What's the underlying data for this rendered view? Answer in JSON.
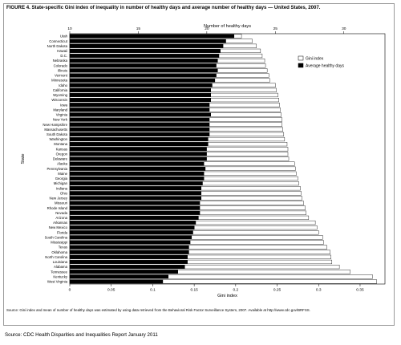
{
  "figure": {
    "title": "FIGURE 4. State-specific Gini index of inequality in number of healthy days and average number of healthy days — United States, 2007.",
    "footnote": "Source: Gini index and mean of number of healthy days was estimated by using data retrieved from the Behavioral Risk Factor Surveillance System, 2007. Available at http://www.cdc.gov/BRFSS."
  },
  "page": {
    "source": "Source:  CDC Health Disparities and Inequalities Report January 2011"
  },
  "chart_data": {
    "type": "bar",
    "orientation": "horizontal",
    "ylabel": "State",
    "xlabel_bottom": "Gini index",
    "xlabel_top": "Number of healthy days",
    "x_bottom_lim": [
      0,
      0.38
    ],
    "x_bottom_ticks": [
      "0",
      "0.05",
      "0.1",
      "0.15",
      "0.2",
      "0.25",
      "0.3",
      "0.35"
    ],
    "x_top_lim": [
      10,
      33
    ],
    "x_top_ticks": [
      "10",
      "15",
      "20",
      "25",
      "30"
    ],
    "legend_position": "right",
    "grid": false,
    "categories": [
      "Utah",
      "Connecticut",
      "North Dakota",
      "Hawaii",
      "D.C.",
      "Nebraska",
      "Colorado",
      "Illinois",
      "Vermont",
      "Minnesota",
      "Idaho",
      "California",
      "Wyoming",
      "Wisconsin",
      "Iowa",
      "Maryland",
      "Virginia",
      "New York",
      "New Hampshire",
      "Massachusetts",
      "South Dakota",
      "Washington",
      "Montana",
      "Kansas",
      "Oregon",
      "Delaware",
      "Alaska",
      "Pennsylvania",
      "Maine",
      "Georgia",
      "Michigan",
      "Indiana",
      "Ohio",
      "New Jersey",
      "Missouri",
      "Rhode Island",
      "Nevada",
      "Arizona",
      "Arkansas",
      "New Mexico",
      "Florida",
      "South Carolina",
      "Mississippi",
      "Texas",
      "Oklahoma",
      "North Carolina",
      "Louisiana",
      "Alabama",
      "Tennessee",
      "Kentucky",
      "West Virginia"
    ],
    "series": [
      {
        "name": "Gini index",
        "axis": "bottom",
        "color": "#ffffff",
        "values": [
          0.207,
          0.22,
          0.225,
          0.23,
          0.232,
          0.235,
          0.236,
          0.238,
          0.24,
          0.241,
          0.248,
          0.249,
          0.251,
          0.252,
          0.253,
          0.254,
          0.255,
          0.256,
          0.256,
          0.257,
          0.258,
          0.259,
          0.262,
          0.263,
          0.263,
          0.264,
          0.271,
          0.272,
          0.273,
          0.275,
          0.276,
          0.278,
          0.279,
          0.28,
          0.282,
          0.284,
          0.285,
          0.288,
          0.296,
          0.298,
          0.3,
          0.305,
          0.306,
          0.31,
          0.314,
          0.315,
          0.316,
          0.325,
          0.338,
          0.365,
          0.37
        ]
      },
      {
        "name": "Average healthy days",
        "axis": "top",
        "color": "#000000",
        "values": [
          22.0,
          21.4,
          21.2,
          21.0,
          20.9,
          20.8,
          20.7,
          20.8,
          20.7,
          20.6,
          20.4,
          20.3,
          20.3,
          20.3,
          20.2,
          20.2,
          20.3,
          20.2,
          20.2,
          20.2,
          20.2,
          20.1,
          20.1,
          20.0,
          20.0,
          20.0,
          19.8,
          19.9,
          19.8,
          19.8,
          19.7,
          19.6,
          19.6,
          19.6,
          19.5,
          19.5,
          19.5,
          19.4,
          19.2,
          19.1,
          19.0,
          18.9,
          18.8,
          18.7,
          18.7,
          18.6,
          18.6,
          18.4,
          17.9,
          17.2,
          16.8
        ]
      }
    ]
  }
}
